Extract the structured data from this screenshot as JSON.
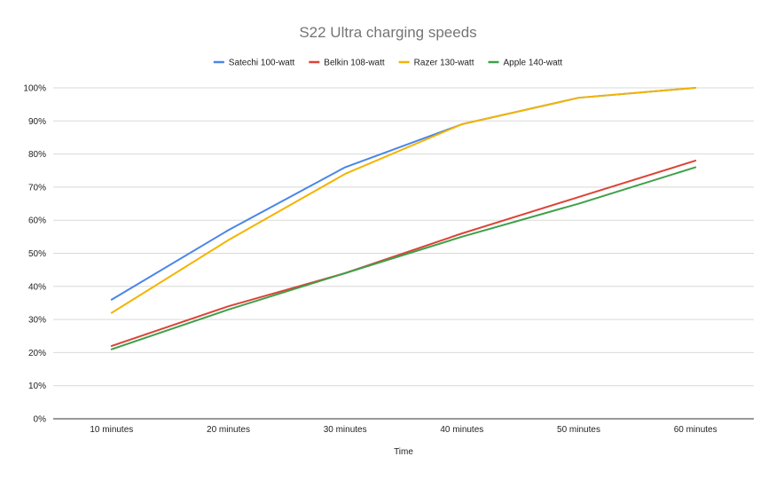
{
  "chart_data": {
    "type": "line",
    "title": "S22 Ultra charging speeds",
    "xlabel": "Time",
    "ylabel": "",
    "categories": [
      "10 minutes",
      "20 minutes",
      "30 minutes",
      "40 minutes",
      "50 minutes",
      "60 minutes"
    ],
    "ylim": [
      0,
      100
    ],
    "y_ticks": [
      0,
      10,
      20,
      30,
      40,
      50,
      60,
      70,
      80,
      90,
      100
    ],
    "y_tick_format": "percent",
    "grid": true,
    "legend_position": "top",
    "series": [
      {
        "name": "Satechi 100-watt",
        "color": "#4a86e8",
        "values": [
          36,
          57,
          76,
          89,
          97,
          100
        ]
      },
      {
        "name": "Belkin 108-watt",
        "color": "#db4437",
        "values": [
          22,
          34,
          44,
          56,
          67,
          78
        ]
      },
      {
        "name": "Razer 130-watt",
        "color": "#f4b400",
        "values": [
          32,
          54,
          74,
          89,
          97,
          100
        ]
      },
      {
        "name": "Apple 140-watt",
        "color": "#3ea04a",
        "values": [
          21,
          33,
          44,
          55,
          65,
          76
        ]
      }
    ]
  }
}
